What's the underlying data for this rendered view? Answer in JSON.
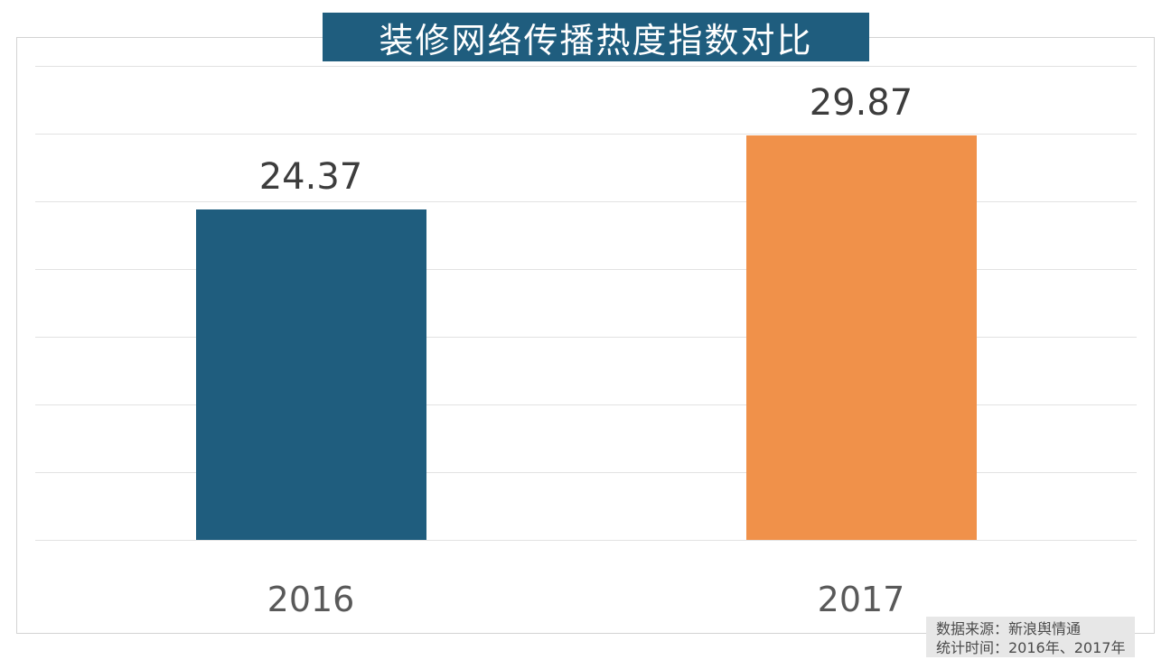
{
  "title": "装修网络传播热度指数对比",
  "chart_data": {
    "type": "bar",
    "title": "装修网络传播热度指数对比",
    "categories": [
      "2016",
      "2017"
    ],
    "values": [
      24.37,
      29.87
    ],
    "value_labels": [
      "24.37",
      "29.87"
    ],
    "ylim": [
      0,
      35
    ],
    "grid_interval": 5,
    "grid": true,
    "legend": false,
    "y_axis_labels_visible": false,
    "bar_colors": [
      "#1F5D7E",
      "#F0914A"
    ]
  },
  "source_note": {
    "line1": "数据来源：新浪舆情通",
    "line2": "统计时间：2016年、2017年"
  },
  "colors": {
    "title_background": "#1F5D7E",
    "title_text": "#FFFFFF",
    "bar_2016": "#1F5D7E",
    "bar_2017": "#F0914A",
    "gridline": "#E2E2E2",
    "frame_border": "#D3D3D3",
    "value_label_text": "#3D3D3D",
    "category_label_text": "#595959",
    "note_background": "#E7E7E7",
    "note_text": "#4B4B4B"
  }
}
